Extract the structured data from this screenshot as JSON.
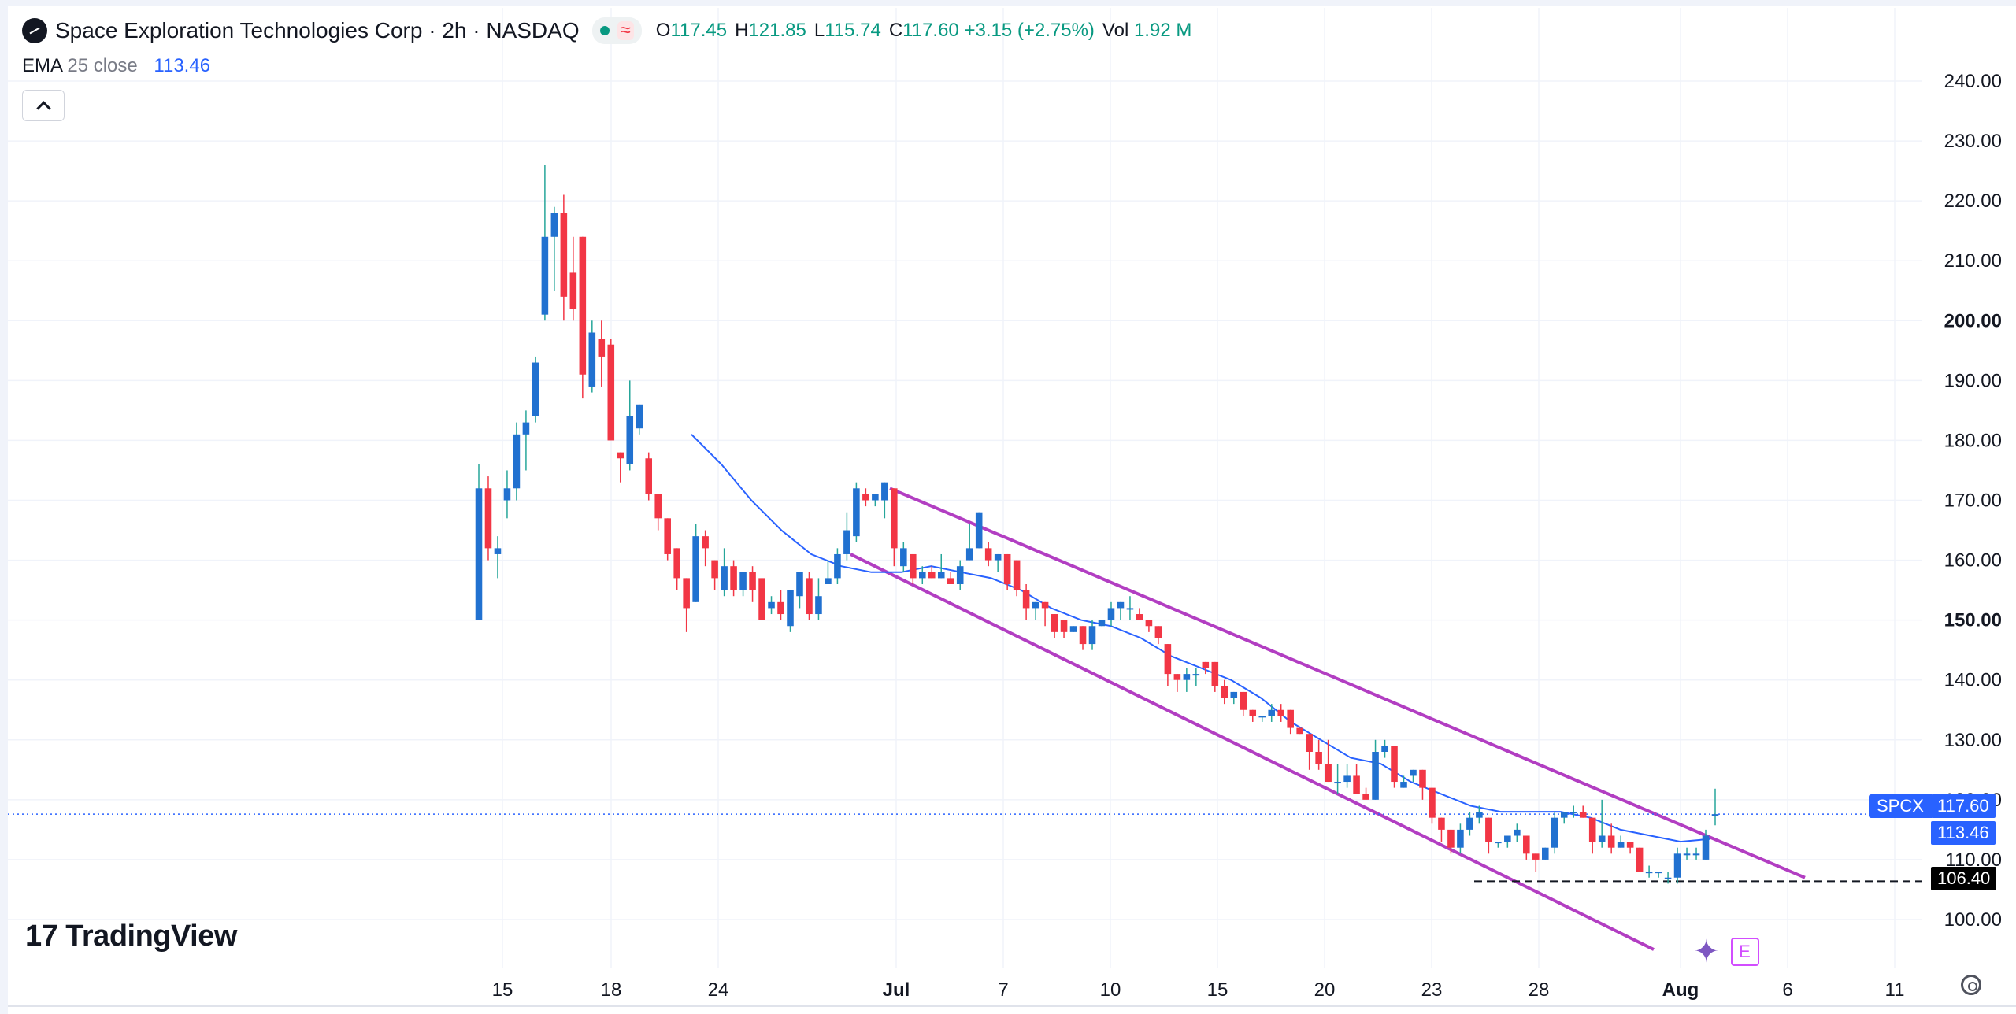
{
  "header": {
    "title": "Space Exploration Technologies Corp · 2h · NASDAQ",
    "ohlc": [
      {
        "key": "O",
        "value": "117.45"
      },
      {
        "key": "H",
        "value": "121.85"
      },
      {
        "key": "L",
        "value": "115.74"
      },
      {
        "key": "C",
        "value": "117.60"
      }
    ],
    "change": "+3.15 (+2.75%)",
    "volume_label": "Vol",
    "volume_value": "1.92 M"
  },
  "ema": {
    "label": "EMA",
    "params": "25 close",
    "value": "113.46"
  },
  "branding": {
    "name": "TradingView",
    "mark": "17"
  },
  "badges": {
    "e_label": "E"
  },
  "price_tags": {
    "symbol": "SPCX",
    "last": "117.60",
    "ema": "113.46",
    "level": "106.40"
  },
  "colors": {
    "up": "#2171d0",
    "down": "#f23645",
    "ema": "#2962ff",
    "channel": "#b23ec2"
  },
  "chart_data": {
    "type": "candlestick",
    "y_axis": {
      "ticks": [
        100,
        110,
        120,
        130,
        140,
        150,
        160,
        170,
        180,
        190,
        200,
        210,
        220,
        230,
        240
      ],
      "labels": [
        "100.00",
        "110.00",
        "120.00",
        "130.00",
        "140.00",
        "150.00",
        "160.00",
        "170.00",
        "180.00",
        "190.00",
        "200.00",
        "210.00",
        "220.00",
        "230.00",
        "240.00"
      ],
      "bold": [
        150,
        200
      ],
      "range": [
        96,
        241
      ]
    },
    "x_axis": {
      "labels": [
        "15",
        "18",
        "24",
        "Jul",
        "7",
        "10",
        "15",
        "20",
        "23",
        "28",
        "Aug",
        "6",
        "11"
      ],
      "bold": [
        "Jul",
        "Aug"
      ]
    },
    "ema_values": [
      181,
      176,
      170,
      165,
      161,
      159,
      158,
      158,
      159,
      158,
      157,
      155,
      152,
      150,
      149,
      147,
      144,
      142,
      140,
      137,
      133,
      130,
      127,
      126,
      123,
      121,
      119,
      118,
      118,
      118,
      117,
      115,
      114,
      113,
      113.46
    ],
    "channel": {
      "upper": [
        [
          172,
          "Jul"
        ],
        [
          107,
          "6"
        ]
      ],
      "lower": [
        [
          161,
          "Jul"
        ],
        [
          95,
          "Aug"
        ]
      ]
    },
    "level_line": 106.4,
    "candles": [
      [
        150,
        172,
        176,
        150
      ],
      [
        172,
        162,
        174,
        160
      ],
      [
        161,
        162,
        164,
        157
      ],
      [
        170,
        172,
        175,
        167
      ],
      [
        172,
        181,
        183,
        170
      ],
      [
        181,
        183,
        185,
        175
      ],
      [
        184,
        193,
        194,
        183
      ],
      [
        201,
        214,
        226,
        200
      ],
      [
        214,
        218,
        219,
        205
      ],
      [
        218,
        204,
        221,
        200
      ],
      [
        208,
        202,
        214,
        200
      ],
      [
        214,
        191,
        214,
        187
      ],
      [
        189,
        198,
        200,
        188
      ],
      [
        197,
        194,
        200,
        189
      ],
      [
        196,
        180,
        197,
        180
      ],
      [
        178,
        177,
        178,
        173
      ],
      [
        176,
        184,
        190,
        175
      ],
      [
        182,
        186,
        186,
        181
      ],
      [
        177,
        171,
        178,
        170
      ],
      [
        171,
        167,
        171,
        165
      ],
      [
        167,
        161,
        167,
        160
      ],
      [
        162,
        157,
        162,
        155
      ],
      [
        157,
        152,
        157,
        148
      ],
      [
        153,
        164,
        166,
        153
      ],
      [
        164,
        162,
        165,
        159
      ],
      [
        160,
        157,
        160,
        155
      ],
      [
        155,
        159,
        162,
        154
      ],
      [
        159,
        155,
        160,
        154
      ],
      [
        155,
        158,
        158,
        154
      ],
      [
        158,
        155,
        159,
        153
      ],
      [
        157,
        150,
        157,
        150
      ],
      [
        152,
        153,
        154,
        151
      ],
      [
        153,
        151,
        155,
        150
      ],
      [
        149,
        155,
        155,
        148
      ],
      [
        154,
        158,
        158,
        152
      ],
      [
        157,
        151,
        158,
        150
      ],
      [
        151,
        154,
        157,
        150
      ],
      [
        156,
        157,
        160,
        156
      ],
      [
        157,
        161,
        162,
        156
      ],
      [
        161,
        165,
        168,
        160
      ],
      [
        164,
        172,
        173,
        163
      ],
      [
        171,
        170,
        172,
        169
      ],
      [
        170,
        171,
        171,
        169
      ],
      [
        170,
        173,
        173,
        167
      ],
      [
        172,
        162,
        172,
        159
      ],
      [
        159,
        162,
        163,
        158
      ],
      [
        161,
        157,
        161,
        156
      ],
      [
        157,
        158,
        159,
        156
      ],
      [
        158,
        157,
        159,
        157
      ],
      [
        157,
        158,
        161,
        157
      ],
      [
        157,
        156,
        158,
        156
      ],
      [
        156,
        159,
        160,
        155
      ],
      [
        160,
        162,
        166,
        160
      ],
      [
        162,
        168,
        168,
        162
      ],
      [
        162,
        160,
        163,
        159
      ],
      [
        160,
        161,
        161,
        158
      ],
      [
        161,
        156,
        161,
        155
      ],
      [
        160,
        155,
        160,
        154
      ],
      [
        155,
        152,
        156,
        150
      ],
      [
        152,
        153,
        153,
        150
      ],
      [
        153,
        152,
        153,
        149
      ],
      [
        151,
        148,
        151,
        147
      ],
      [
        150,
        148,
        150,
        147
      ],
      [
        148,
        149,
        149,
        148
      ],
      [
        149,
        146,
        149,
        145
      ],
      [
        146,
        149,
        150,
        145
      ],
      [
        149,
        150,
        150,
        149
      ],
      [
        150,
        152,
        153,
        149
      ],
      [
        152,
        153,
        153,
        150
      ],
      [
        152,
        152,
        154,
        150
      ],
      [
        151,
        150,
        152,
        150
      ],
      [
        150,
        149,
        150,
        148
      ],
      [
        149,
        147,
        149,
        146
      ],
      [
        146,
        141,
        146,
        139
      ],
      [
        141,
        140,
        141,
        138
      ],
      [
        140,
        141,
        142,
        138
      ],
      [
        141,
        141,
        142,
        139
      ],
      [
        143,
        142,
        143,
        141
      ],
      [
        143,
        139,
        143,
        138
      ],
      [
        139,
        137,
        140,
        136
      ],
      [
        137,
        138,
        138,
        136
      ],
      [
        138,
        135,
        138,
        134
      ],
      [
        135,
        134,
        135,
        133
      ],
      [
        134,
        134,
        134,
        133
      ],
      [
        134,
        135,
        136,
        133
      ],
      [
        135,
        134,
        136,
        133
      ],
      [
        135,
        132,
        135,
        131
      ],
      [
        132,
        131,
        132,
        131
      ],
      [
        131,
        128,
        131,
        125
      ],
      [
        128,
        126,
        130,
        125
      ],
      [
        126,
        123,
        130,
        123
      ],
      [
        123,
        123,
        126,
        121
      ],
      [
        123,
        124,
        126,
        122
      ],
      [
        124,
        121,
        126,
        121
      ],
      [
        121,
        120,
        122,
        120
      ],
      [
        120,
        128,
        130,
        120
      ],
      [
        128,
        129,
        130,
        127
      ],
      [
        129,
        123,
        129,
        122
      ],
      [
        122,
        123,
        124,
        122
      ],
      [
        124,
        125,
        125,
        123
      ],
      [
        125,
        122,
        125,
        120
      ],
      [
        122,
        117,
        122,
        116
      ],
      [
        117,
        115,
        117,
        113
      ],
      [
        115,
        112,
        115,
        111
      ],
      [
        112,
        115,
        116,
        111
      ],
      [
        115,
        117,
        118,
        114
      ],
      [
        117,
        118,
        119,
        116
      ],
      [
        117,
        113,
        117,
        111
      ],
      [
        113,
        113,
        113,
        112
      ],
      [
        113,
        114,
        114,
        112
      ],
      [
        114,
        115,
        116,
        113
      ],
      [
        114,
        111,
        114,
        110
      ],
      [
        111,
        110,
        111,
        108
      ],
      [
        110,
        112,
        112,
        110
      ],
      [
        112,
        117,
        118,
        111
      ],
      [
        117,
        118,
        118,
        116
      ],
      [
        118,
        118,
        119,
        117
      ],
      [
        118,
        117,
        119,
        117
      ],
      [
        117,
        113,
        117,
        111
      ],
      [
        113,
        114,
        120,
        112
      ],
      [
        114,
        112,
        116,
        111
      ],
      [
        112,
        113,
        114,
        112
      ],
      [
        113,
        112,
        113,
        111
      ],
      [
        112,
        108,
        112,
        108
      ],
      [
        108,
        108,
        109,
        107
      ],
      [
        108,
        108,
        108,
        107
      ],
      [
        107,
        107,
        108,
        106
      ],
      [
        107,
        111,
        112,
        106
      ],
      [
        111,
        111,
        112,
        110
      ],
      [
        111,
        111,
        112,
        110
      ],
      [
        110,
        114,
        115,
        110
      ],
      [
        117.45,
        117.6,
        121.85,
        115.74
      ]
    ]
  }
}
